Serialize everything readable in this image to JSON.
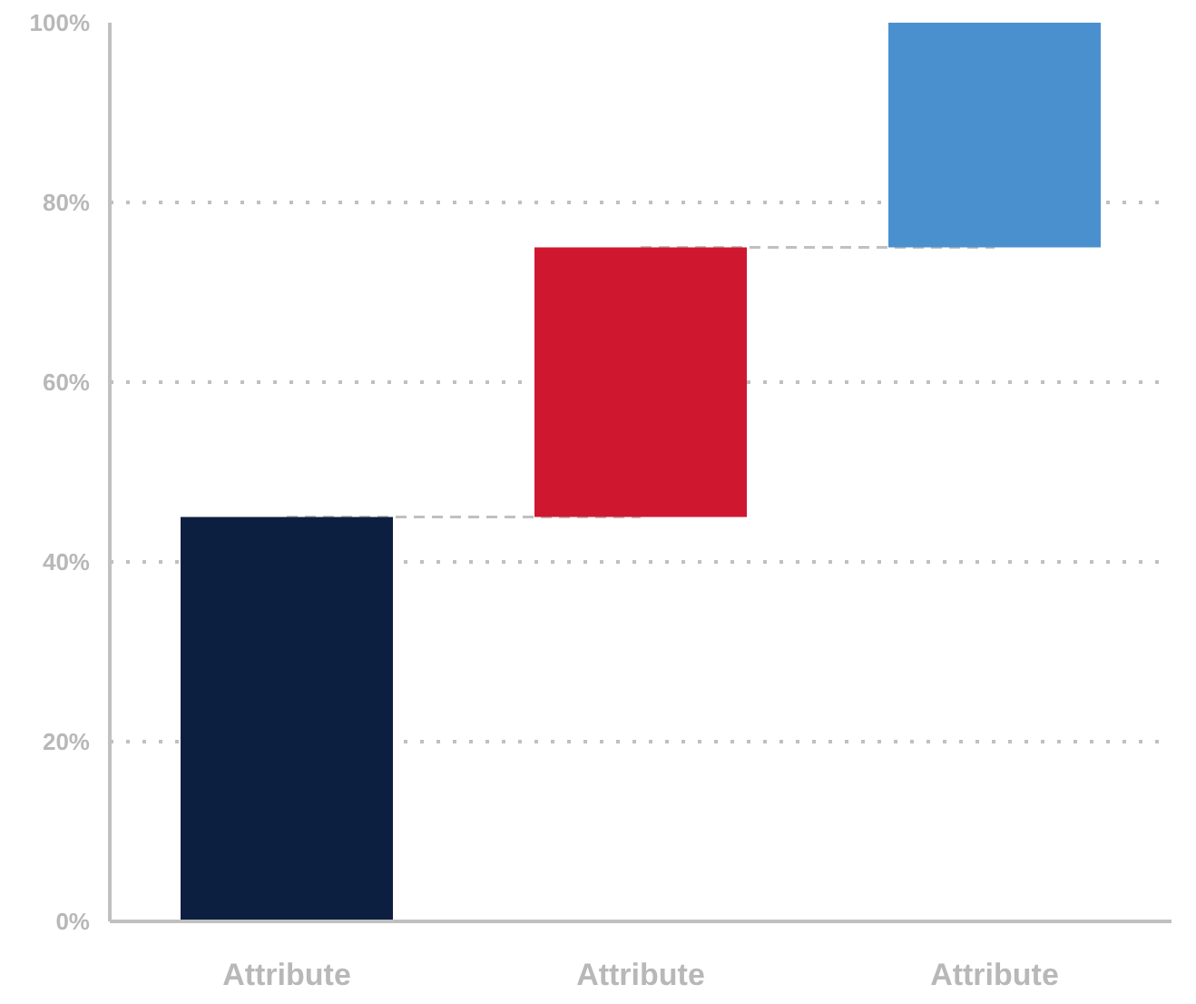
{
  "chart_data": {
    "type": "bar",
    "categories": [
      "Attribute",
      "Attribute",
      "Attribute"
    ],
    "values": [
      45,
      30,
      25
    ],
    "base": [
      0,
      45,
      75
    ],
    "colors": [
      "#0d1f40",
      "#cf1730",
      "#4a90cf"
    ],
    "ylim": [
      0,
      100
    ],
    "yticks": [
      {
        "value": 0,
        "label": "0%"
      },
      {
        "value": 20,
        "label": "20%"
      },
      {
        "value": 40,
        "label": "40%"
      },
      {
        "value": 60,
        "label": "60%"
      },
      {
        "value": 80,
        "label": "80%"
      },
      {
        "value": 100,
        "label": "100%"
      }
    ],
    "grid": "y",
    "series": [
      {
        "type": "line",
        "line_style": "dashed",
        "color": "#c0c0c0",
        "values": [
          45,
          45,
          null
        ]
      },
      {
        "type": "line",
        "line_style": "dashed",
        "color": "#c0c0c0",
        "values": [
          null,
          75,
          75
        ]
      }
    ]
  }
}
